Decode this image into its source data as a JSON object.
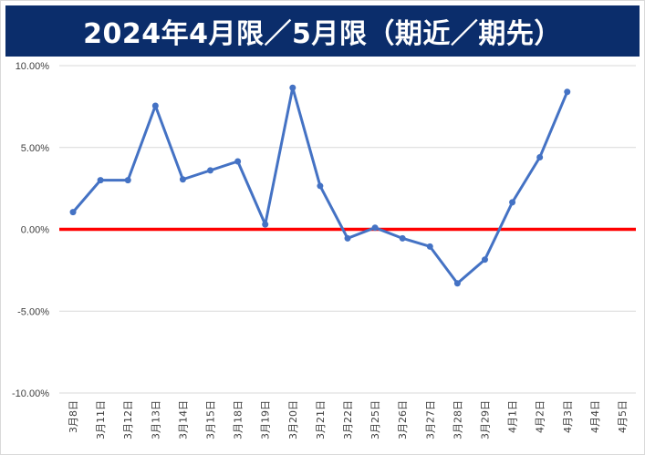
{
  "chart_data": {
    "type": "line",
    "title": "2024年4月限／5月限（期近／期先）",
    "categories": [
      "3月8日",
      "3月11日",
      "3月12日",
      "3月13日",
      "3月14日",
      "3月15日",
      "3月18日",
      "3月19日",
      "3月20日",
      "3月21日",
      "3月22日",
      "3月25日",
      "3月26日",
      "3月27日",
      "3月28日",
      "3月29日",
      "4月1日",
      "4月2日",
      "4月3日",
      "4月4日",
      "4月5日"
    ],
    "series": [
      {
        "values": [
          1.05,
          3.0,
          3.0,
          7.55,
          3.05,
          3.6,
          4.15,
          0.3,
          8.65,
          2.65,
          -0.55,
          0.1,
          -0.55,
          -1.05,
          -3.3,
          -1.85,
          1.65,
          4.4,
          8.4,
          null,
          null
        ],
        "color": "#4472c4"
      }
    ],
    "y_ticks": [
      "10.00%",
      "5.00%",
      "0.00%",
      "-5.00%",
      "-10.00%"
    ],
    "ylim": [
      -10,
      10
    ],
    "reference_line": {
      "y": 0,
      "color": "#ff0000"
    },
    "grid": true,
    "colors": {
      "title_bg": "#0b2d6b",
      "title_text": "#ffffff",
      "gridline": "#d9d9d9"
    }
  }
}
